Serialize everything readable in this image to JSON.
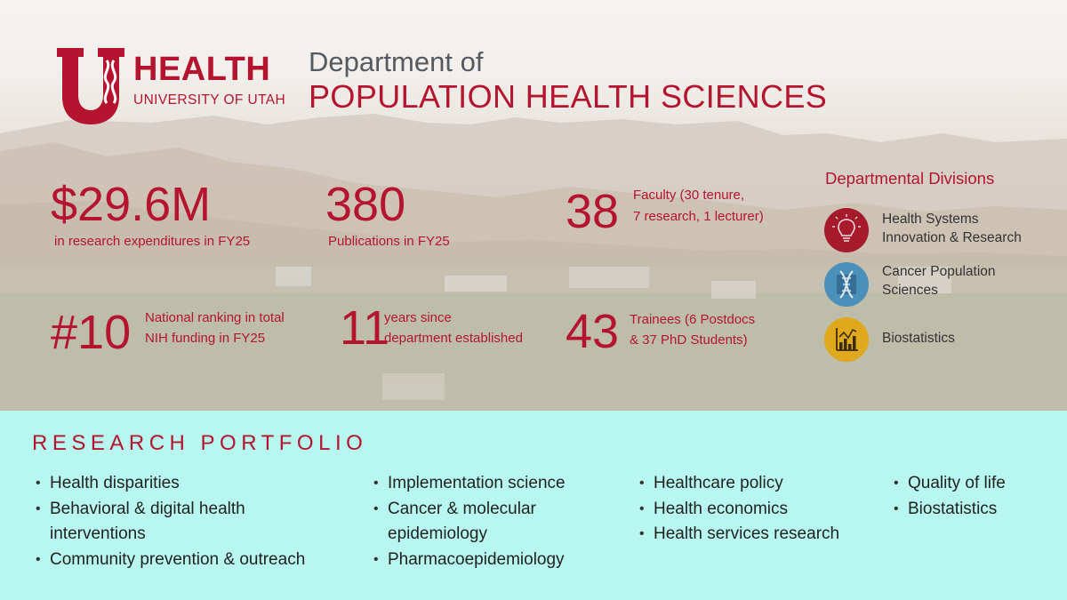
{
  "header": {
    "logo": {
      "brand": "HEALTH",
      "subtitle": "UNIVERSITY OF UTAH"
    },
    "title_line1": "Department of",
    "title_line2": "POPULATION HEALTH SCIENCES"
  },
  "stats": [
    {
      "value": "$29.6M",
      "caption": "in research expenditures in FY25"
    },
    {
      "value": "380",
      "caption": "Publications in FY25"
    },
    {
      "value": "38",
      "caption_line1": "Faculty (30 tenure,",
      "caption_line2": "7 research, 1 lecturer)"
    },
    {
      "value": "#10",
      "caption_line1": "National ranking in total",
      "caption_line2": "NIH funding in FY25"
    },
    {
      "value": "11",
      "caption_line1": "years since",
      "caption_line2": "department established"
    },
    {
      "value": "43",
      "caption_line1": "Trainees (6 Postdocs",
      "caption_line2": "& 37 PhD Students)"
    }
  ],
  "divisions": {
    "heading": "Departmental Divisions",
    "items": [
      {
        "line1": "Health Systems",
        "line2": "Innovation & Research",
        "icon": "lightbulb-icon",
        "color": "#a51b2c"
      },
      {
        "line1": "Cancer Population",
        "line2": "Sciences",
        "icon": "molecule-icon",
        "color": "#4a90b8"
      },
      {
        "line1": "Biostatistics",
        "icon": "chart-icon",
        "color": "#e0a81c"
      }
    ]
  },
  "portfolio": {
    "title": "RESEARCH PORTFOLIO",
    "col1": [
      "Health disparities",
      "Behavioral & digital health",
      "interventions",
      "Community prevention & outreach"
    ],
    "col2": [
      "Implementation science",
      "Cancer & molecular",
      "epidemiology",
      "Pharmacoepidemiology"
    ],
    "col3": [
      "Healthcare policy",
      "Health economics",
      "Health services research"
    ],
    "col4": [
      "Quality of life",
      "Biostatistics"
    ]
  },
  "colors": {
    "brand_red": "#b4142e",
    "portfolio_bg": "#b7f7ef",
    "title_gray": "#555a60"
  }
}
